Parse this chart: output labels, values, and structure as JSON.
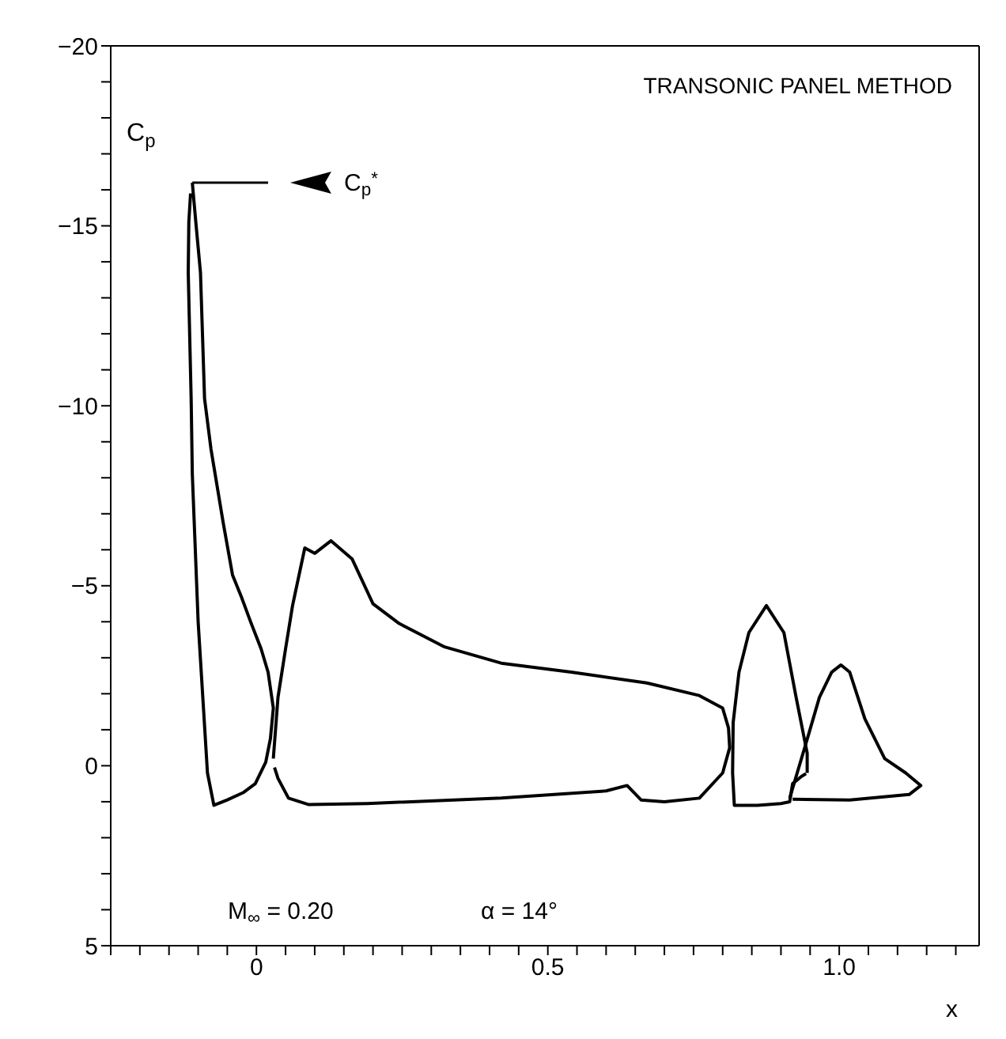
{
  "chart_data": {
    "type": "line",
    "xlabel": "x",
    "ylabel": "C$_{p}$",
    "xlim": [
      -0.25,
      1.24
    ],
    "xticks": [
      {
        "value": -0.25,
        "label": null
      },
      {
        "value": -0.2,
        "label": null
      },
      {
        "value": -0.15,
        "label": null
      },
      {
        "value": -0.1,
        "label": null
      },
      {
        "value": -0.05,
        "label": null
      },
      {
        "value": 0,
        "label": "0"
      },
      {
        "value": 0.05,
        "label": null
      },
      {
        "value": 0.1,
        "label": null
      },
      {
        "value": 0.15,
        "label": null
      },
      {
        "value": 0.2,
        "label": null
      },
      {
        "value": 0.25,
        "label": null
      },
      {
        "value": 0.3,
        "label": null
      },
      {
        "value": 0.35,
        "label": null
      },
      {
        "value": 0.4,
        "label": null
      },
      {
        "value": 0.45,
        "label": null
      },
      {
        "value": 0.5,
        "label": "0.5"
      },
      {
        "value": 0.55,
        "label": null
      },
      {
        "value": 0.6,
        "label": null
      },
      {
        "value": 0.65,
        "label": null
      },
      {
        "value": 0.7,
        "label": null
      },
      {
        "value": 0.75,
        "label": null
      },
      {
        "value": 0.8,
        "label": null
      },
      {
        "value": 0.85,
        "label": null
      },
      {
        "value": 0.9,
        "label": null
      },
      {
        "value": 0.95,
        "label": null
      },
      {
        "value": 1.0,
        "label": "1.0"
      },
      {
        "value": 1.05,
        "label": null
      },
      {
        "value": 1.1,
        "label": null
      },
      {
        "value": 1.15,
        "label": null
      },
      {
        "value": 1.2,
        "label": null
      }
    ],
    "ylim": [
      5,
      -20
    ],
    "yticks": [
      {
        "value": -20,
        "label": "−20"
      },
      {
        "value": -19,
        "label": null
      },
      {
        "value": -18,
        "label": null
      },
      {
        "value": -17,
        "label": null
      },
      {
        "value": -16,
        "label": null
      },
      {
        "value": -15,
        "label": "−15"
      },
      {
        "value": -14,
        "label": null
      },
      {
        "value": -13,
        "label": null
      },
      {
        "value": -12,
        "label": null
      },
      {
        "value": -11,
        "label": null
      },
      {
        "value": -10,
        "label": "−10"
      },
      {
        "value": -9,
        "label": null
      },
      {
        "value": -8,
        "label": null
      },
      {
        "value": -7,
        "label": null
      },
      {
        "value": -6,
        "label": null
      },
      {
        "value": -5,
        "label": "−5"
      },
      {
        "value": -4,
        "label": null
      },
      {
        "value": -3,
        "label": null
      },
      {
        "value": -2,
        "label": null
      },
      {
        "value": -1,
        "label": null
      },
      {
        "value": 0,
        "label": "0"
      },
      {
        "value": 1,
        "label": null
      },
      {
        "value": 2,
        "label": null
      },
      {
        "value": 3,
        "label": null
      },
      {
        "value": 4,
        "label": null
      },
      {
        "value": 5,
        "label": "5"
      }
    ],
    "annotations": [
      "TRANSONIC PANEL METHOD",
      "M$_{∞}$ = 0.20",
      "α = 14°"
    ],
    "series": [
      {
        "color": "#000000",
        "x": [
          -0.11,
          -0.104,
          -0.096,
          -0.089,
          -0.078,
          -0.057,
          -0.041,
          -0.026,
          -0.01,
          0.008,
          0.02,
          0.029,
          0.024,
          0.016,
          -0.002,
          -0.023,
          -0.05,
          -0.073,
          -0.084,
          -0.1,
          -0.11,
          -0.112,
          -0.117,
          -0.116,
          -0.113
        ],
        "values": [
          -16.2,
          -15.1,
          -13.7,
          -10.2,
          -8.8,
          -6.75,
          -5.3,
          -4.7,
          -4.0,
          -3.25,
          -2.6,
          -1.6,
          -0.75,
          -0.1,
          0.5,
          0.75,
          0.95,
          1.1,
          0.2,
          -4.0,
          -8.1,
          -10.2,
          -13.7,
          -15.1,
          -15.9
        ]
      },
      {
        "color": "#000000",
        "x": [
          0.029,
          0.037,
          0.05,
          0.062,
          0.083,
          0.1,
          0.128,
          0.164,
          0.2,
          0.245,
          0.323,
          0.42,
          0.54,
          0.67,
          0.76,
          0.8,
          0.81,
          0.812,
          0.8,
          0.76,
          0.7,
          0.66,
          0.636,
          0.6,
          0.42,
          0.19,
          0.09,
          0.055,
          0.037,
          0.031
        ],
        "values": [
          -0.2,
          -1.9,
          -3.25,
          -4.45,
          -6.05,
          -5.9,
          -6.25,
          -5.75,
          -4.5,
          -3.95,
          -3.3,
          -2.85,
          -2.6,
          -2.3,
          -1.95,
          -1.6,
          -1.05,
          -0.5,
          0.2,
          0.9,
          1.0,
          0.95,
          0.55,
          0.7,
          0.9,
          1.05,
          1.08,
          0.9,
          0.35,
          0.05
        ]
      },
      {
        "color": "#000000",
        "x": [
          0.945,
          0.945,
          0.926,
          0.905,
          0.875,
          0.845,
          0.828,
          0.818,
          0.817,
          0.82,
          0.86,
          0.9,
          0.915,
          0.92,
          0.935,
          0.943
        ],
        "values": [
          0.2,
          -0.35,
          -1.9,
          -3.7,
          -4.45,
          -3.7,
          -2.6,
          -1.2,
          0.2,
          1.1,
          1.1,
          1.05,
          1.0,
          0.5,
          0.3,
          0.22
        ]
      },
      {
        "color": "#000000",
        "x": [
          0.915,
          0.948,
          0.966,
          0.987,
          1.003,
          1.018,
          1.044,
          1.078,
          1.114,
          1.14,
          1.12,
          1.018,
          0.92
        ],
        "values": [
          0.9,
          -0.9,
          -1.9,
          -2.6,
          -2.8,
          -2.6,
          -1.3,
          -0.2,
          0.2,
          0.55,
          0.8,
          0.95,
          0.93
        ]
      },
      {
        "name": "C$_{p}$$^{*}$",
        "color": "#000000",
        "x": [
          -0.11,
          0.02
        ],
        "values": [
          -16.2,
          -16.2
        ]
      }
    ]
  }
}
